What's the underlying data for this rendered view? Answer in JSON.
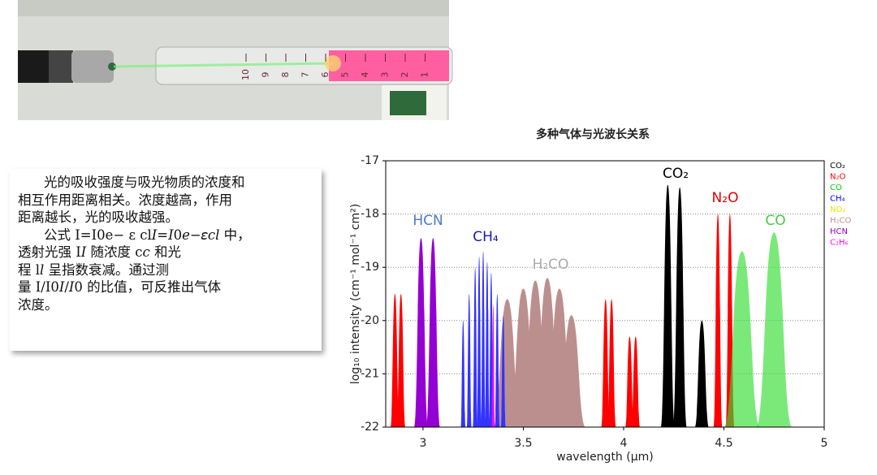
{
  "photo": {
    "scale": [
      "10",
      "9",
      "8",
      "7",
      "6",
      "5",
      "4",
      "3",
      "2",
      "1"
    ]
  },
  "text_box": {
    "lines": [
      "光的吸收强度与吸光物质的浓度和",
      "相互作用距离相关。浓度越高，作用",
      "距离越长，光的吸收越强。",
      "公式 I=I0e− ε cl𝐼=𝐼0𝑒−𝜀𝑐𝑙 中，",
      "透射光强 I𝐼 随浓度 c𝑐 和光",
      "程 l𝑙 呈指数衰减。通过测",
      "量 I/I0𝐼/𝐼0 的比值，可反推出气体",
      "浓度。"
    ]
  },
  "chart_data": {
    "type": "spectrum",
    "title": "多种气体与光波长关系",
    "x_label": "wavelength (μm)",
    "y_label": "log₁₀ intensity  (cm⁻¹ mol⁻¹ cm²)",
    "xlim": [
      2.814,
      5
    ],
    "xticks": [
      3,
      3.5,
      4,
      4.5,
      5
    ],
    "ylim": [
      -22,
      -17
    ],
    "yticks": [
      -17,
      -18,
      -19,
      -20,
      -21,
      -22
    ],
    "grid": true,
    "series": [
      {
        "name": "N₂O",
        "color": "#ff0000",
        "x": [
          2.86,
          2.89,
          3.91,
          3.94,
          4.03,
          4.06,
          4.47,
          4.53
        ],
        "values": [
          -19.5,
          -19.5,
          -19.6,
          -19.6,
          -20.3,
          -20.3,
          -18.0,
          -18.0
        ]
      },
      {
        "name": "CO₂",
        "color": "#000000",
        "x": [
          4.22,
          4.28,
          4.39
        ],
        "values": [
          -17.45,
          -17.5,
          -20.0
        ]
      },
      {
        "name": "H₂CO",
        "color": "#bc8f8f",
        "x": [
          3.42,
          3.5,
          3.56,
          3.62,
          3.68,
          3.74
        ],
        "values": [
          -19.6,
          -19.4,
          -19.25,
          -19.2,
          -19.4,
          -19.9
        ]
      },
      {
        "name": "CH₄",
        "color": "#3333ff",
        "x": [
          3.2,
          3.23,
          3.26,
          3.28,
          3.3,
          3.32,
          3.34,
          3.37,
          3.4
        ],
        "values": [
          -20.0,
          -19.5,
          -19.0,
          -18.8,
          -18.7,
          -18.9,
          -19.1,
          -19.5,
          -19.9
        ]
      },
      {
        "name": "C₂H₆",
        "color": "#ff00ff",
        "x": [
          3.35
        ],
        "values": [
          -19.7
        ]
      },
      {
        "name": "HCN",
        "color": "#9400d3",
        "x": [
          2.99,
          3.05
        ],
        "values": [
          -18.45,
          -18.45
        ]
      },
      {
        "name": "CO",
        "color": "#33dd33",
        "x": [
          4.59,
          4.75
        ],
        "values": [
          -18.7,
          -18.35
        ]
      }
    ],
    "legend": [
      {
        "label": "CO₂",
        "color": "#000000"
      },
      {
        "label": "N₂O",
        "color": "#ff0000"
      },
      {
        "label": "CO",
        "color": "#00cc00"
      },
      {
        "label": "CH₄",
        "color": "#0000ff"
      },
      {
        "label": "NO₂",
        "color": "#e6e600"
      },
      {
        "label": "H₂CO",
        "color": "#bc8f8f"
      },
      {
        "label": "HCN",
        "color": "#9400d3"
      },
      {
        "label": "C₂H₆",
        "color": "#ff00ff"
      }
    ],
    "annotations": [
      "HCN",
      "CH₄",
      "H₂CO",
      "CO₂",
      "N₂O",
      "CO"
    ]
  }
}
